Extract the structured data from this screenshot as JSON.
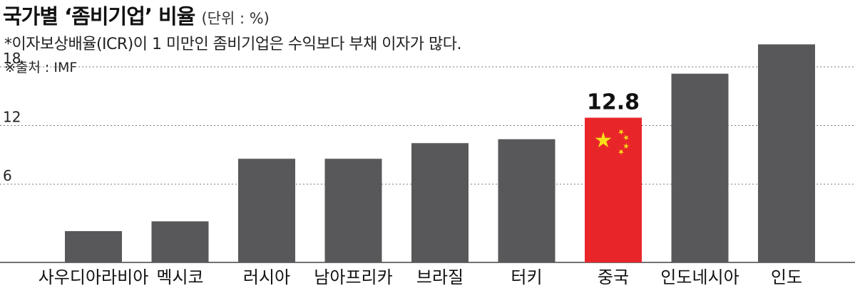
{
  "header": {
    "title": "국가별 ‘좀비기업’ 비율",
    "unit": "(단위 : %)",
    "note": "*이자보상배율(ICR)이 1 미만인 좀비기업은 수익보다 부채 이자가 많다.",
    "source": "※출처 : IMF"
  },
  "colors": {
    "bar": "#58585a",
    "highlight": "#e8262a",
    "star": "#f7e017",
    "grid": "#777777",
    "axis": "#444444"
  },
  "chart_data": {
    "type": "bar",
    "categories": [
      "사우디아라비아",
      "멕시코",
      "러시아",
      "남아프리카",
      "브라질",
      "터키",
      "중국",
      "인도네시아",
      "인도"
    ],
    "values": [
      1.2,
      2.2,
      8.6,
      8.6,
      10.2,
      10.6,
      12.8,
      17.3,
      20.3
    ],
    "highlight_index": 6,
    "value_labels": [
      {
        "index": 6,
        "text": "12.8"
      }
    ],
    "yticks": [
      6,
      12,
      18
    ],
    "ylim": [
      -2,
      22
    ],
    "grid": true,
    "xlabel": "",
    "ylabel": ""
  }
}
